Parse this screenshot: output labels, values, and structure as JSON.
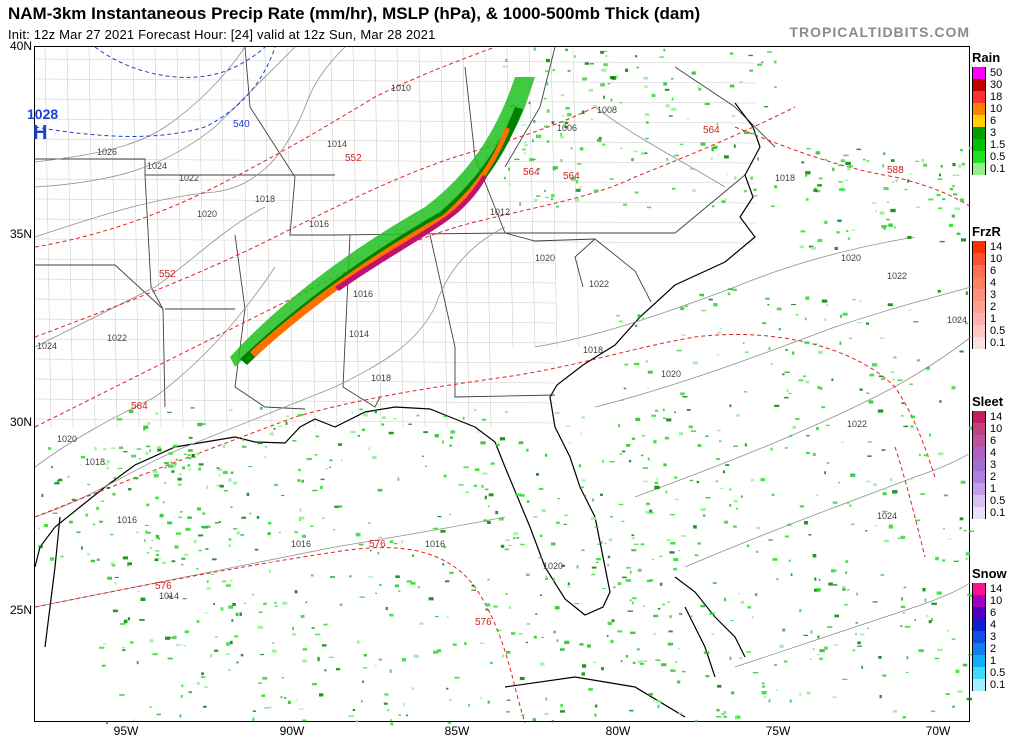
{
  "header": {
    "title": "NAM-3km Instantaneous Precip Rate (mm/hr), MSLP (hPa), & 1000-500mb Thick (dam)",
    "subtitle": "Init: 12z Mar 27 2021   Forecast Hour: [24]   valid at 12z Sun, Mar 28 2021",
    "brand": "TROPICALTIDBITS.COM"
  },
  "axes": {
    "lat_labels": [
      "40N",
      "35N",
      "30N",
      "25N"
    ],
    "lon_labels": [
      "95W",
      "90W",
      "85W",
      "80W",
      "75W",
      "70W"
    ]
  },
  "map": {
    "high_center": {
      "letter": "H",
      "value": "1028"
    },
    "isobar_labels": [
      "1026",
      "1024",
      "1022",
      "1020",
      "1018",
      "1016",
      "1014",
      "1012",
      "1010",
      "1008",
      "1006",
      "1024",
      "1022",
      "1020",
      "1018",
      "1016",
      "1014",
      "1016",
      "1018",
      "1020",
      "1022",
      "1024",
      "1022",
      "1020",
      "1020",
      "1018",
      "1016",
      "1014",
      "1016",
      "1018",
      "1020",
      "1024",
      "1022"
    ],
    "thickness_labels": [
      "540",
      "552",
      "552",
      "564",
      "564",
      "564",
      "564",
      "576",
      "576",
      "576",
      "588"
    ],
    "colors": {
      "isobar": "#888888",
      "thickness": "#e02020",
      "thickness_cold": "#1f3fd0",
      "coast": "#000000",
      "counties": "#b0b0b0"
    }
  },
  "legends": [
    {
      "title": "Rain",
      "labels": [
        "50",
        "30",
        "18",
        "10",
        "6",
        "3",
        "1.5",
        "0.5",
        "0.1"
      ],
      "colors": [
        "#ff00ff",
        "#c00000",
        "#ff3030",
        "#ff8000",
        "#ffd000",
        "#00a000",
        "#00c000",
        "#20e020",
        "#90f090"
      ]
    },
    {
      "title": "FrzR",
      "labels": [
        "14",
        "10",
        "6",
        "4",
        "3",
        "2",
        "1",
        "0.5",
        "0.1"
      ],
      "colors": [
        "#ff3000",
        "#ff5030",
        "#ff7050",
        "#ff8060",
        "#ff9080",
        "#ffa090",
        "#ffb0b0",
        "#ffc8c8",
        "#ffe0e0"
      ]
    },
    {
      "title": "Sleet",
      "labels": [
        "14",
        "10",
        "6",
        "4",
        "3",
        "2",
        "1",
        "0.5",
        "0.1"
      ],
      "colors": [
        "#c02060",
        "#c04080",
        "#c050a0",
        "#b060c0",
        "#a070d0",
        "#b080e0",
        "#c0a0e8",
        "#d8c0f0",
        "#ece0f8"
      ]
    },
    {
      "title": "Snow",
      "labels": [
        "14",
        "10",
        "6",
        "4",
        "3",
        "2",
        "1",
        "0.5",
        "0.1"
      ],
      "colors": [
        "#ff1090",
        "#a000c0",
        "#5000c0",
        "#1020d0",
        "#1050e0",
        "#1080f0",
        "#10b0f8",
        "#40d8ff",
        "#a0f0ff"
      ]
    }
  ]
}
